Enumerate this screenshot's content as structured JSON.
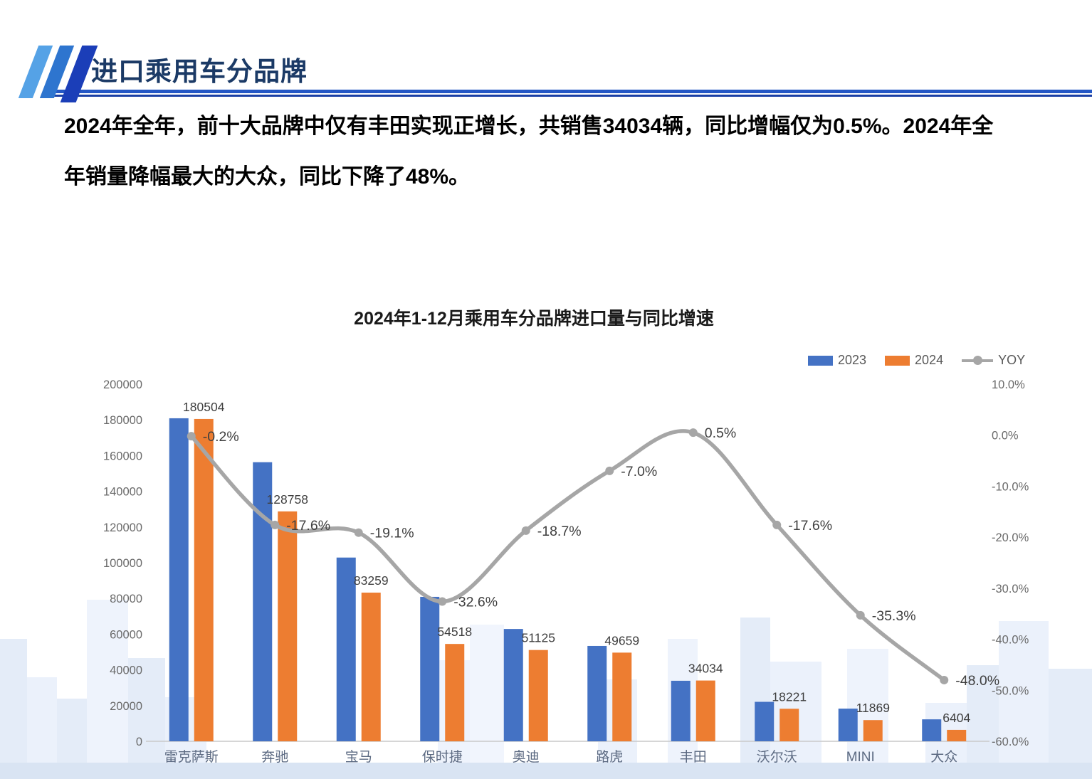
{
  "slide": {
    "header": {
      "title": "进口乘用车分品牌"
    },
    "intro": {
      "line1": "2024年全年，前十大品牌中仅有丰田实现正增长，共销售34034辆，同比增幅仅为0.5%。2024年全",
      "line2": "年销量降幅最大的大众，同比下降了48%。"
    }
  },
  "chart_data": {
    "type": "combo-bar-line",
    "title": "2024年1-12月乘用车分品牌进口量与同比增速",
    "categories": [
      "雷克萨斯",
      "奔驰",
      "宝马",
      "保时捷",
      "奥迪",
      "路虎",
      "丰田",
      "沃尔沃",
      "MINI",
      "大众"
    ],
    "series": [
      {
        "name": "2023",
        "type": "bar",
        "color": "#4472C4",
        "values": [
          180900,
          156300,
          102900,
          80900,
          62900,
          53400,
          33900,
          22100,
          18300,
          12300
        ]
      },
      {
        "name": "2024",
        "type": "bar",
        "color": "#ED7D31",
        "values": [
          180504,
          128758,
          83259,
          54518,
          51125,
          49659,
          34034,
          18221,
          11869,
          6404
        ]
      }
    ],
    "yoy": {
      "name": "YOY",
      "type": "line",
      "color": "#A6A6A6",
      "values_pct": [
        -0.2,
        -17.6,
        -19.1,
        -32.6,
        -18.7,
        -7.0,
        0.5,
        -17.6,
        -35.3,
        -48.0
      ]
    },
    "data_labels_2024": [
      "180504",
      "128758",
      "83259",
      "54518",
      "51125",
      "49659",
      "34034",
      "18221",
      "11869",
      "6404"
    ],
    "yoy_labels": [
      "-0.2%",
      "-17.6%",
      "-19.1%",
      "-32.6%",
      "-18.7%",
      "-7.0%",
      "0.5%",
      "-17.6%",
      "-35.3%",
      "-48.0%"
    ],
    "left_axis": {
      "min": 0,
      "max": 200000,
      "step": 20000
    },
    "right_axis": {
      "min": -60,
      "max": 10,
      "step": 10,
      "suffix": "%"
    },
    "grid": false,
    "legend_position": "top-right",
    "legend": [
      {
        "label": "2023",
        "color": "#4472C4"
      },
      {
        "label": "2024",
        "color": "#ED7D31"
      },
      {
        "label": "YOY",
        "color": "#A6A6A6"
      }
    ]
  }
}
